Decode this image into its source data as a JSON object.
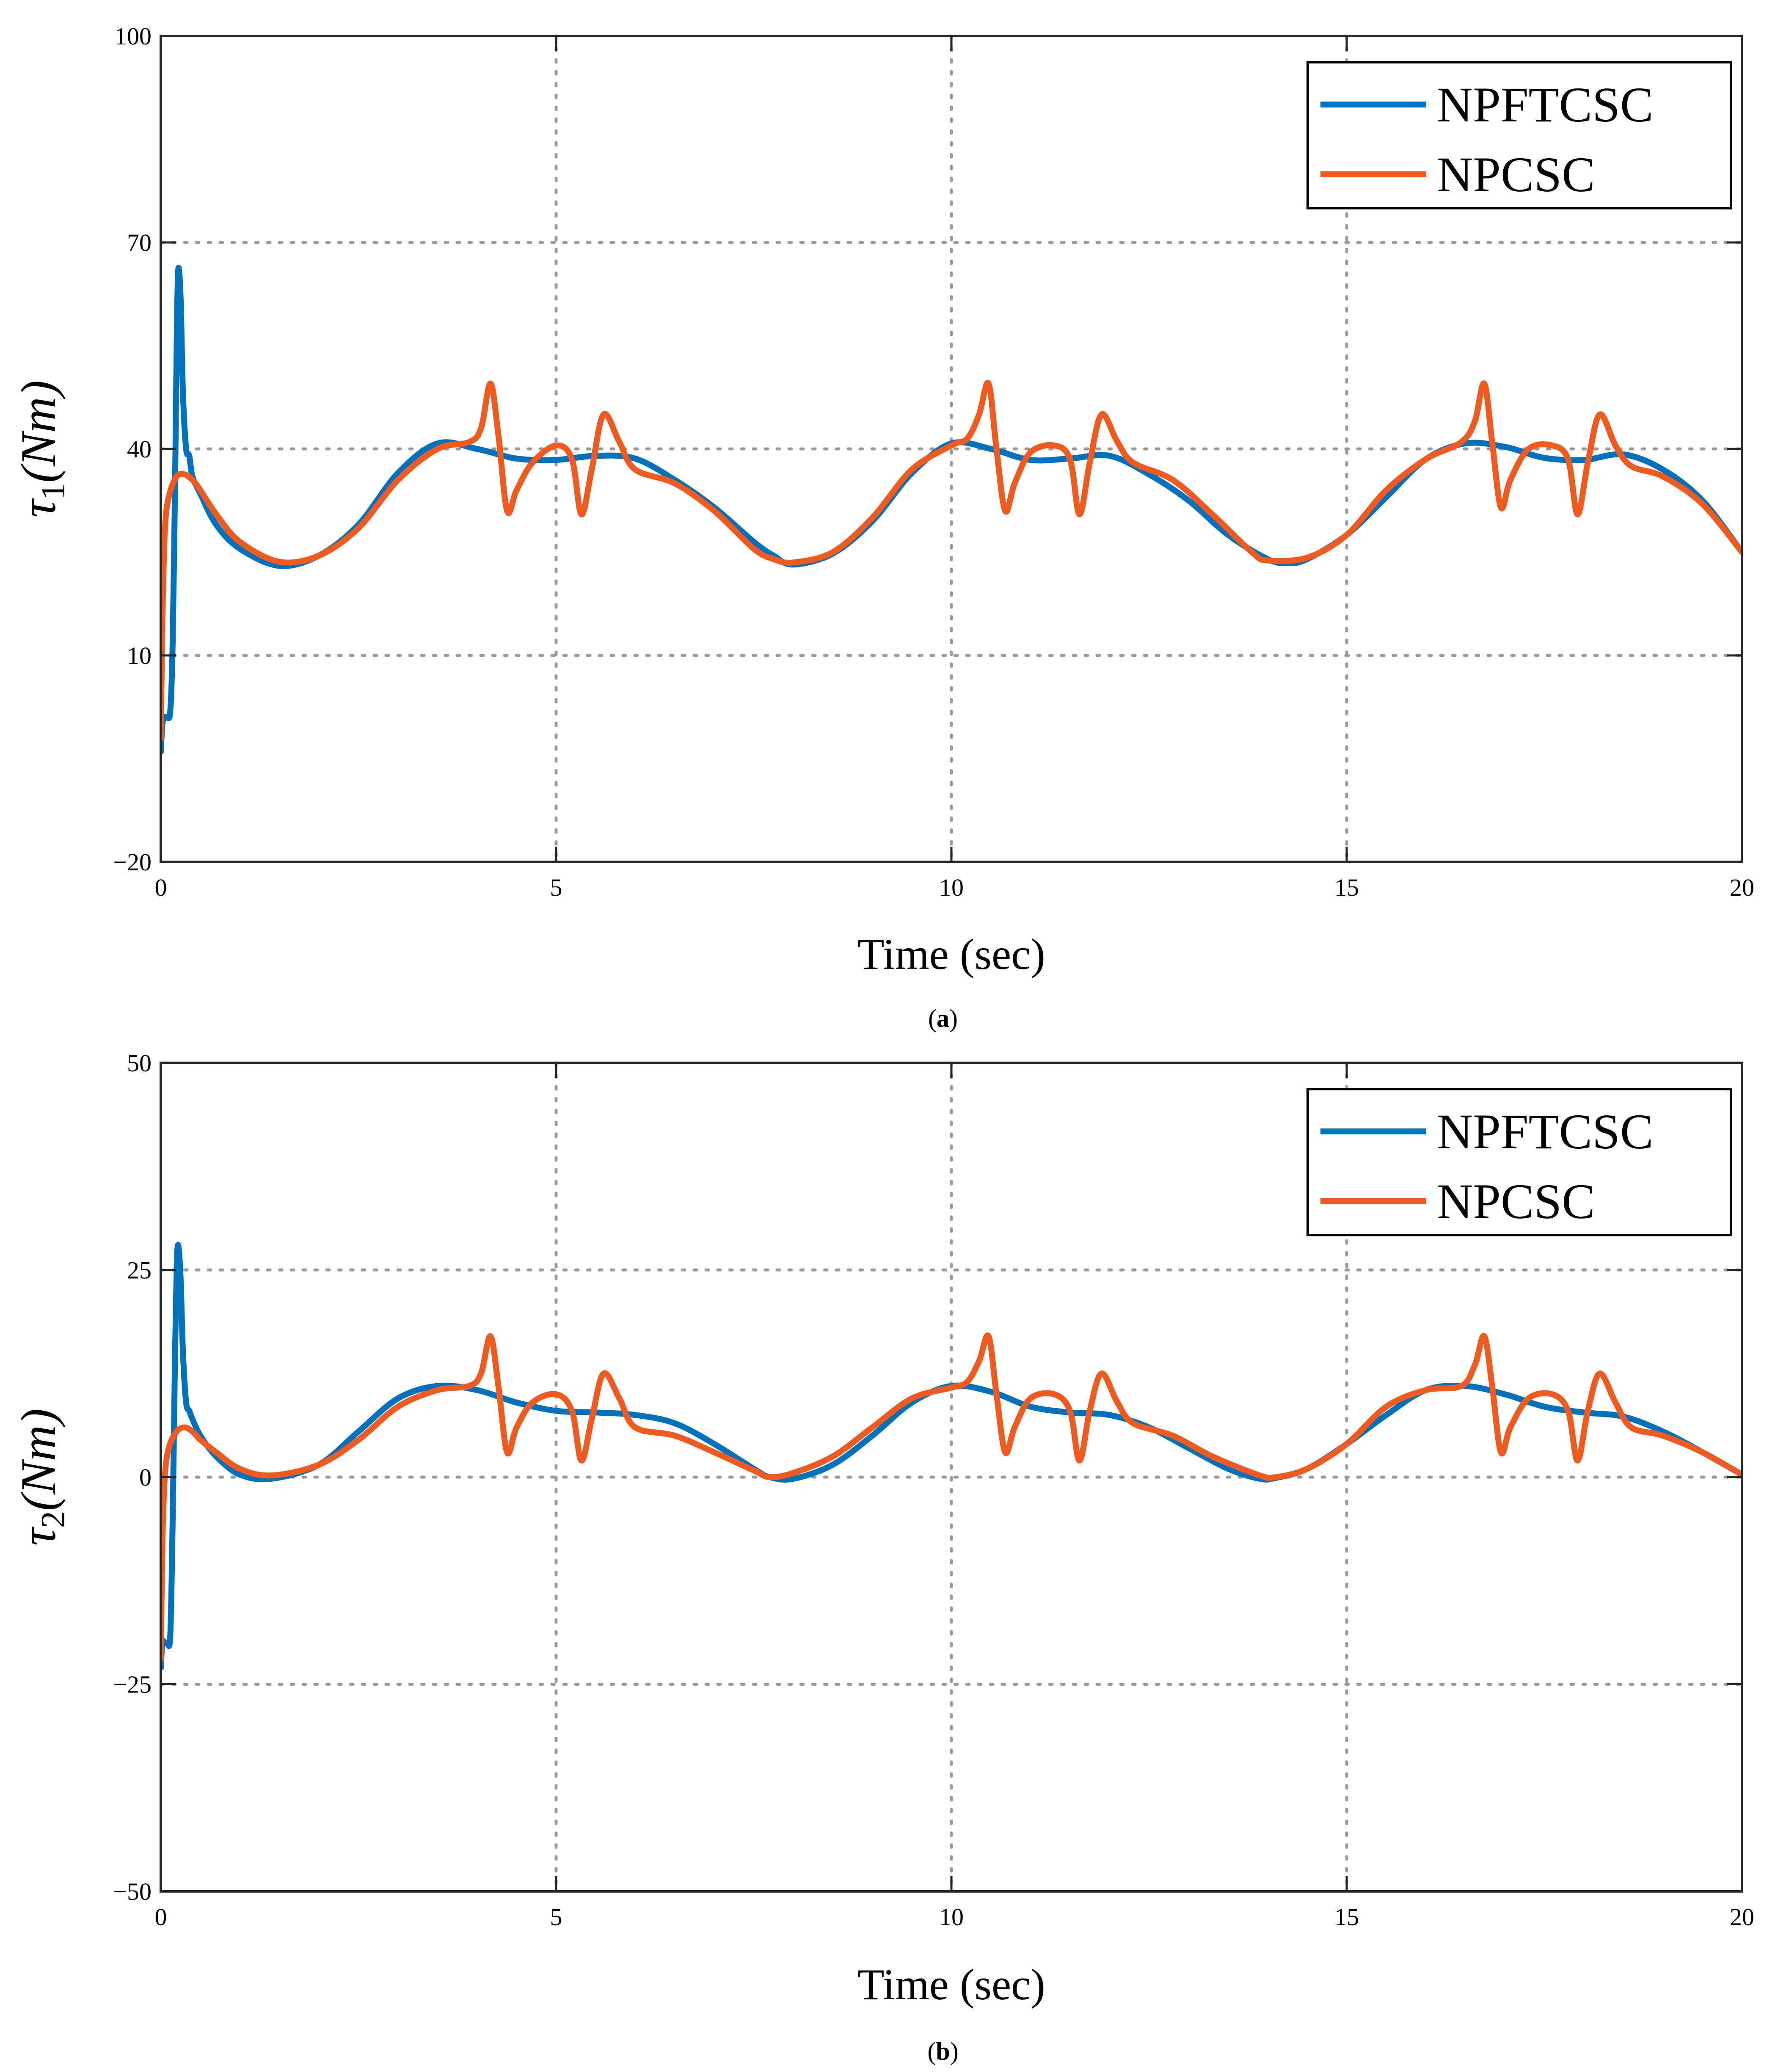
{
  "figure": {
    "chart_data": [
      {
        "type": "line",
        "panel_label": "a",
        "xlabel": "Time (sec)",
        "ylabel": {
          "symbol": "τ",
          "subscript": "1",
          "unit": "(Nm)"
        },
        "xlim": [
          0,
          20
        ],
        "ylim": [
          -20,
          100
        ],
        "xticks": [
          0,
          5,
          10,
          15,
          20
        ],
        "yticks": [
          -20,
          10,
          40,
          70,
          100
        ],
        "ytick_labels": [
          "−20",
          "10",
          "40",
          "70",
          "100"
        ],
        "grid": true,
        "legend_position": "top-right",
        "series": [
          {
            "name": "NPFTCSC",
            "color": "#0072BD",
            "x": [
              0,
              0.02,
              0.05,
              0.08,
              0.12,
              0.15,
              0.18,
              0.2,
              0.22,
              0.25,
              0.28,
              0.32,
              0.36,
              0.4,
              0.5,
              0.7,
              1.0,
              1.5,
              2.0,
              2.5,
              3.0,
              3.5,
              4.0,
              4.5,
              5.0,
              5.5,
              6.0,
              6.5,
              7.0,
              7.5,
              7.75,
              8.0,
              8.5,
              9.0,
              9.5,
              10.0,
              10.5,
              11.0,
              11.5,
              12.0,
              12.5,
              13.0,
              13.5,
              14.0,
              14.25,
              14.5,
              15.0,
              15.5,
              16.0,
              16.5,
              17.0,
              17.5,
              18.0,
              18.5,
              19.0,
              19.5,
              20.0
            ],
            "y": [
              -4,
              0,
              1,
              1,
              2,
              12,
              35,
              55,
              66,
              62,
              48,
              40,
              39,
              36,
              33.5,
              29,
              25.5,
              23,
              24.5,
              29,
              36.5,
              40.8,
              40,
              38.6,
              38.4,
              39,
              38.6,
              35.5,
              31.5,
              26.5,
              24.5,
              23.2,
              24.8,
              29.5,
              36.5,
              40.8,
              40,
              38.4,
              38.6,
              39,
              36.3,
              32.5,
              27.5,
              24,
              23.4,
              24,
              27.5,
              33,
              38.5,
              40.8,
              40.3,
              38.7,
              38.4,
              39.2,
              37,
              32.5,
              25
            ]
          },
          {
            "name": "NPCSC",
            "color": "#F05A1E",
            "x": [
              0,
              0.02,
              0.05,
              0.1,
              0.2,
              0.3,
              0.4,
              0.5,
              0.7,
              1.0,
              1.5,
              2.0,
              2.5,
              3.0,
              3.5,
              3.9,
              4.05,
              4.17,
              4.27,
              4.38,
              4.5,
              4.7,
              5.0,
              5.2,
              5.32,
              5.45,
              5.6,
              5.8,
              6.0,
              6.5,
              7.0,
              7.5,
              7.75,
              8.0,
              8.5,
              9.0,
              9.5,
              10.0,
              10.2,
              10.35,
              10.47,
              10.57,
              10.68,
              10.8,
              11.0,
              11.3,
              11.5,
              11.62,
              11.75,
              11.9,
              12.1,
              12.3,
              12.8,
              13.3,
              13.8,
              14.0,
              14.5,
              15.0,
              15.5,
              16.0,
              16.45,
              16.62,
              16.74,
              16.84,
              16.95,
              17.07,
              17.3,
              17.6,
              17.8,
              17.92,
              18.05,
              18.2,
              18.4,
              18.6,
              19.0,
              19.5,
              20.0
            ],
            "y": [
              -2,
              15,
              28,
              33,
              36,
              36.3,
              35.5,
              34,
              30.5,
              26.5,
              23.6,
              24.5,
              28.5,
              35.5,
              40,
              41,
              43,
              49.5,
              42,
              31,
              34,
              38,
              40.5,
              38.5,
              30.5,
              37,
              45,
              41,
              37,
              35,
              31,
              25.5,
              24,
              23.5,
              25,
              30,
              37,
              40.5,
              41.5,
              45,
              49.5,
              40,
              31,
              35,
              39.5,
              40.5,
              38.5,
              30.5,
              38,
              45,
              41,
              38,
              35.5,
              30.5,
              25,
              23.8,
              24.2,
              27.5,
              34,
              38.5,
              41,
              44,
              49.5,
              41,
              31.5,
              35.5,
              40,
              40.5,
              38.5,
              30.5,
              38,
              45,
              40.5,
              37.5,
              36,
              32,
              25
            ]
          }
        ]
      },
      {
        "type": "line",
        "panel_label": "b",
        "xlabel": "Time (sec)",
        "ylabel": {
          "symbol": "τ",
          "subscript": "2",
          "unit": "(Nm)"
        },
        "xlim": [
          0,
          20
        ],
        "ylim": [
          -50,
          50
        ],
        "xticks": [
          0,
          5,
          10,
          15,
          20
        ],
        "yticks": [
          -50,
          -25,
          0,
          25,
          50
        ],
        "ytick_labels": [
          "−50",
          "−25",
          "0",
          "25",
          "50"
        ],
        "grid": true,
        "legend_position": "top-right",
        "series": [
          {
            "name": "NPFTCSC",
            "color": "#0072BD",
            "x": [
              0,
              0.02,
              0.05,
              0.08,
              0.12,
              0.15,
              0.18,
              0.2,
              0.22,
              0.25,
              0.28,
              0.32,
              0.36,
              0.4,
              0.5,
              0.7,
              1.0,
              1.4,
              2.0,
              2.5,
              3.0,
              3.5,
              4.0,
              4.5,
              5.0,
              5.5,
              6.0,
              6.5,
              7.0,
              7.5,
              7.7,
              8.0,
              8.5,
              9.0,
              9.5,
              10.0,
              10.5,
              11.0,
              11.5,
              12.0,
              12.5,
              13.0,
              13.5,
              13.9,
              14.1,
              14.5,
              15.0,
              15.5,
              16.0,
              16.5,
              17.0,
              17.5,
              18.0,
              18.5,
              19.0,
              19.5,
              20.0
            ],
            "y": [
              -23,
              -20,
              -20,
              -20,
              -19,
              -5,
              15,
              25,
              28,
              24,
              15,
              9,
              8,
              7,
              5,
              2.5,
              0.3,
              -0.2,
              1.5,
              5.5,
              9.5,
              11,
              10.5,
              9,
              8,
              7.8,
              7.5,
              6.5,
              4,
              1,
              0,
              -0.2,
              1.5,
              5,
              9,
              11,
              10.3,
              8.5,
              7.8,
              7.5,
              6,
              3.5,
              1,
              -0.2,
              -0.1,
              1,
              4,
              7.5,
              10.5,
              11,
              10,
              8.5,
              7.8,
              7.3,
              5.5,
              3,
              0.3
            ]
          },
          {
            "name": "NPCSC",
            "color": "#F05A1E",
            "x": [
              0,
              0.02,
              0.05,
              0.1,
              0.2,
              0.3,
              0.4,
              0.5,
              0.7,
              1.0,
              1.4,
              2.0,
              2.5,
              3.0,
              3.5,
              3.9,
              4.05,
              4.17,
              4.27,
              4.38,
              4.5,
              4.7,
              5.0,
              5.2,
              5.32,
              5.45,
              5.6,
              5.8,
              6.0,
              6.5,
              7.0,
              7.5,
              7.7,
              8.0,
              8.5,
              9.0,
              9.5,
              10.0,
              10.2,
              10.35,
              10.47,
              10.57,
              10.68,
              10.8,
              11.0,
              11.3,
              11.5,
              11.62,
              11.75,
              11.9,
              12.1,
              12.3,
              12.8,
              13.3,
              13.9,
              14.1,
              14.5,
              15.0,
              15.5,
              16.0,
              16.45,
              16.62,
              16.74,
              16.84,
              16.95,
              17.07,
              17.3,
              17.6,
              17.8,
              17.92,
              18.05,
              18.2,
              18.4,
              18.6,
              19.0,
              19.5,
              20.0
            ],
            "y": [
              -22,
              -8,
              0,
              3.5,
              5.5,
              6,
              5.5,
              4.5,
              3,
              1,
              0.2,
              1.5,
              4.5,
              8.5,
              10.5,
              11,
              12.5,
              17,
              11,
              3,
              6,
              9,
              10,
              8,
              2,
              7,
              12.5,
              9.5,
              6,
              5,
              3,
              0.8,
              0,
              0.5,
              2.5,
              6,
              9.5,
              10.8,
              11.5,
              14,
              17,
              10,
              3,
              6,
              9.5,
              10,
              8,
              2,
              8,
              12.5,
              9,
              6.5,
              5,
              2.5,
              0.2,
              0,
              1,
              4,
              8.5,
              10.5,
              11,
              13.5,
              17,
              11,
              3,
              6,
              9.5,
              10,
              8,
              2,
              8,
              12.5,
              9,
              6,
              5,
              3,
              0.3
            ]
          }
        ]
      }
    ]
  }
}
